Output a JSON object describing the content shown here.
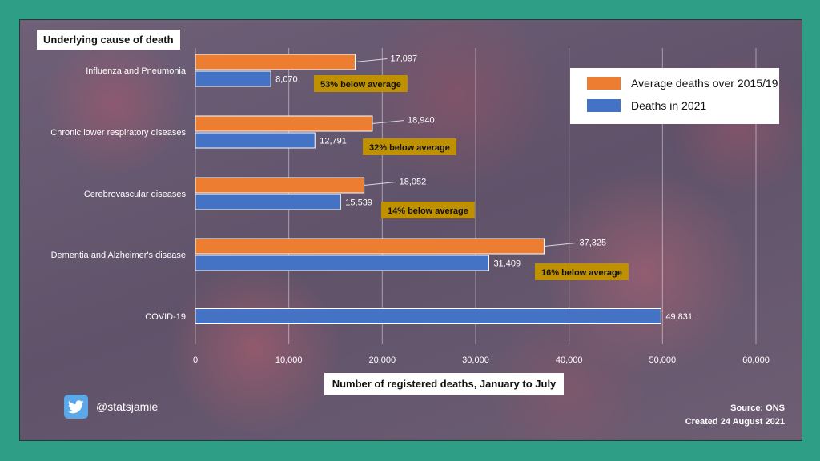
{
  "chart_data": {
    "type": "bar",
    "orientation": "horizontal",
    "title": "Underlying cause of death",
    "xlabel": "Number of registered deaths, January to July",
    "ylabel": "",
    "xlim": [
      0,
      60000
    ],
    "xticks": [
      0,
      10000,
      20000,
      30000,
      40000,
      50000,
      60000
    ],
    "xtick_labels": [
      "0",
      "10,000",
      "20,000",
      "30,000",
      "40,000",
      "50,000",
      "60,000"
    ],
    "grid": "vertical",
    "legend_position": "top-right",
    "categories": [
      "Influenza and Pneumonia",
      "Chronic lower respiratory diseases",
      "Cerebrovascular diseases",
      "Dementia and Alzheimer's disease",
      "COVID-19"
    ],
    "series": [
      {
        "name": "Average deaths over 2015/19",
        "color": "#ed7d31",
        "values": [
          17097,
          18940,
          18052,
          37325,
          null
        ],
        "labels": [
          "17,097",
          "18,940",
          "18,052",
          "37,325",
          ""
        ]
      },
      {
        "name": "Deaths in 2021",
        "color": "#4472c4",
        "values": [
          8070,
          12791,
          15539,
          31409,
          49831
        ],
        "labels": [
          "8,070",
          "12,791",
          "15,539",
          "31,409",
          "49,831"
        ]
      }
    ],
    "annotations": [
      "53% below average",
      "32% below average",
      "14% below average",
      "16% below average",
      ""
    ],
    "annotation_color": "#bf9000"
  },
  "footer": {
    "handle": "@statsjamie",
    "source": "Source: ONS",
    "created": "Created 24 August 2021"
  },
  "icons": {
    "social": "twitter-bird-icon"
  }
}
